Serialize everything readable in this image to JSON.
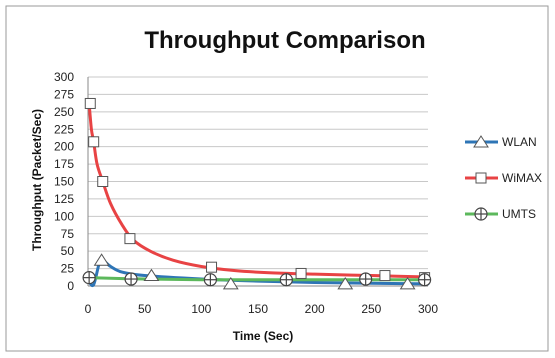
{
  "chart_data": {
    "type": "line",
    "title": "Throughput Comparison",
    "xlabel": "Time (Sec)",
    "ylabel": "Throughput (Packet/Sec)",
    "xlim": [
      0,
      300
    ],
    "ylim": [
      0,
      300
    ],
    "xticks": [
      0,
      50,
      100,
      150,
      200,
      250,
      300
    ],
    "yticks": [
      0,
      25,
      50,
      75,
      100,
      125,
      150,
      175,
      200,
      225,
      250,
      275,
      300
    ],
    "grid": "horizontal",
    "legend": "right",
    "series": [
      {
        "name": "WLAN",
        "color": "#2e75b6",
        "marker": "triangle",
        "line": [
          [
            1,
            6
          ],
          [
            5,
            2
          ],
          [
            10,
            33
          ],
          [
            13,
            37
          ],
          [
            20,
            28
          ],
          [
            30,
            20
          ],
          [
            50,
            15
          ],
          [
            100,
            10
          ],
          [
            150,
            7
          ],
          [
            200,
            5
          ],
          [
            250,
            4
          ],
          [
            300,
            3
          ]
        ],
        "markers": [
          [
            12,
            37
          ],
          [
            56,
            15
          ],
          [
            126,
            3
          ],
          [
            227,
            3
          ],
          [
            282,
            3
          ]
        ]
      },
      {
        "name": "WiMAX",
        "color": "#e84344",
        "marker": "square",
        "line": [
          [
            1,
            262
          ],
          [
            3,
            225
          ],
          [
            5,
            207
          ],
          [
            8,
            175
          ],
          [
            13,
            150
          ],
          [
            20,
            118
          ],
          [
            30,
            88
          ],
          [
            40,
            66
          ],
          [
            55,
            50
          ],
          [
            75,
            37
          ],
          [
            100,
            28
          ],
          [
            130,
            22
          ],
          [
            160,
            19
          ],
          [
            200,
            17
          ],
          [
            250,
            15
          ],
          [
            300,
            13
          ]
        ],
        "markers": [
          [
            2,
            262
          ],
          [
            5,
            207
          ],
          [
            13,
            150
          ],
          [
            37,
            68
          ],
          [
            109,
            27
          ],
          [
            188,
            18
          ],
          [
            262,
            15
          ],
          [
            297,
            12
          ]
        ]
      },
      {
        "name": "UMTS",
        "color": "#5cb85c",
        "marker": "circle-cross",
        "line": [
          [
            0,
            12
          ],
          [
            50,
            10
          ],
          [
            100,
            9
          ],
          [
            150,
            9
          ],
          [
            200,
            9
          ],
          [
            250,
            9
          ],
          [
            300,
            9
          ]
        ],
        "markers": [
          [
            1,
            12
          ],
          [
            38,
            10
          ],
          [
            108,
            9
          ],
          [
            175,
            9
          ],
          [
            245,
            10
          ],
          [
            297,
            9
          ]
        ]
      }
    ]
  }
}
